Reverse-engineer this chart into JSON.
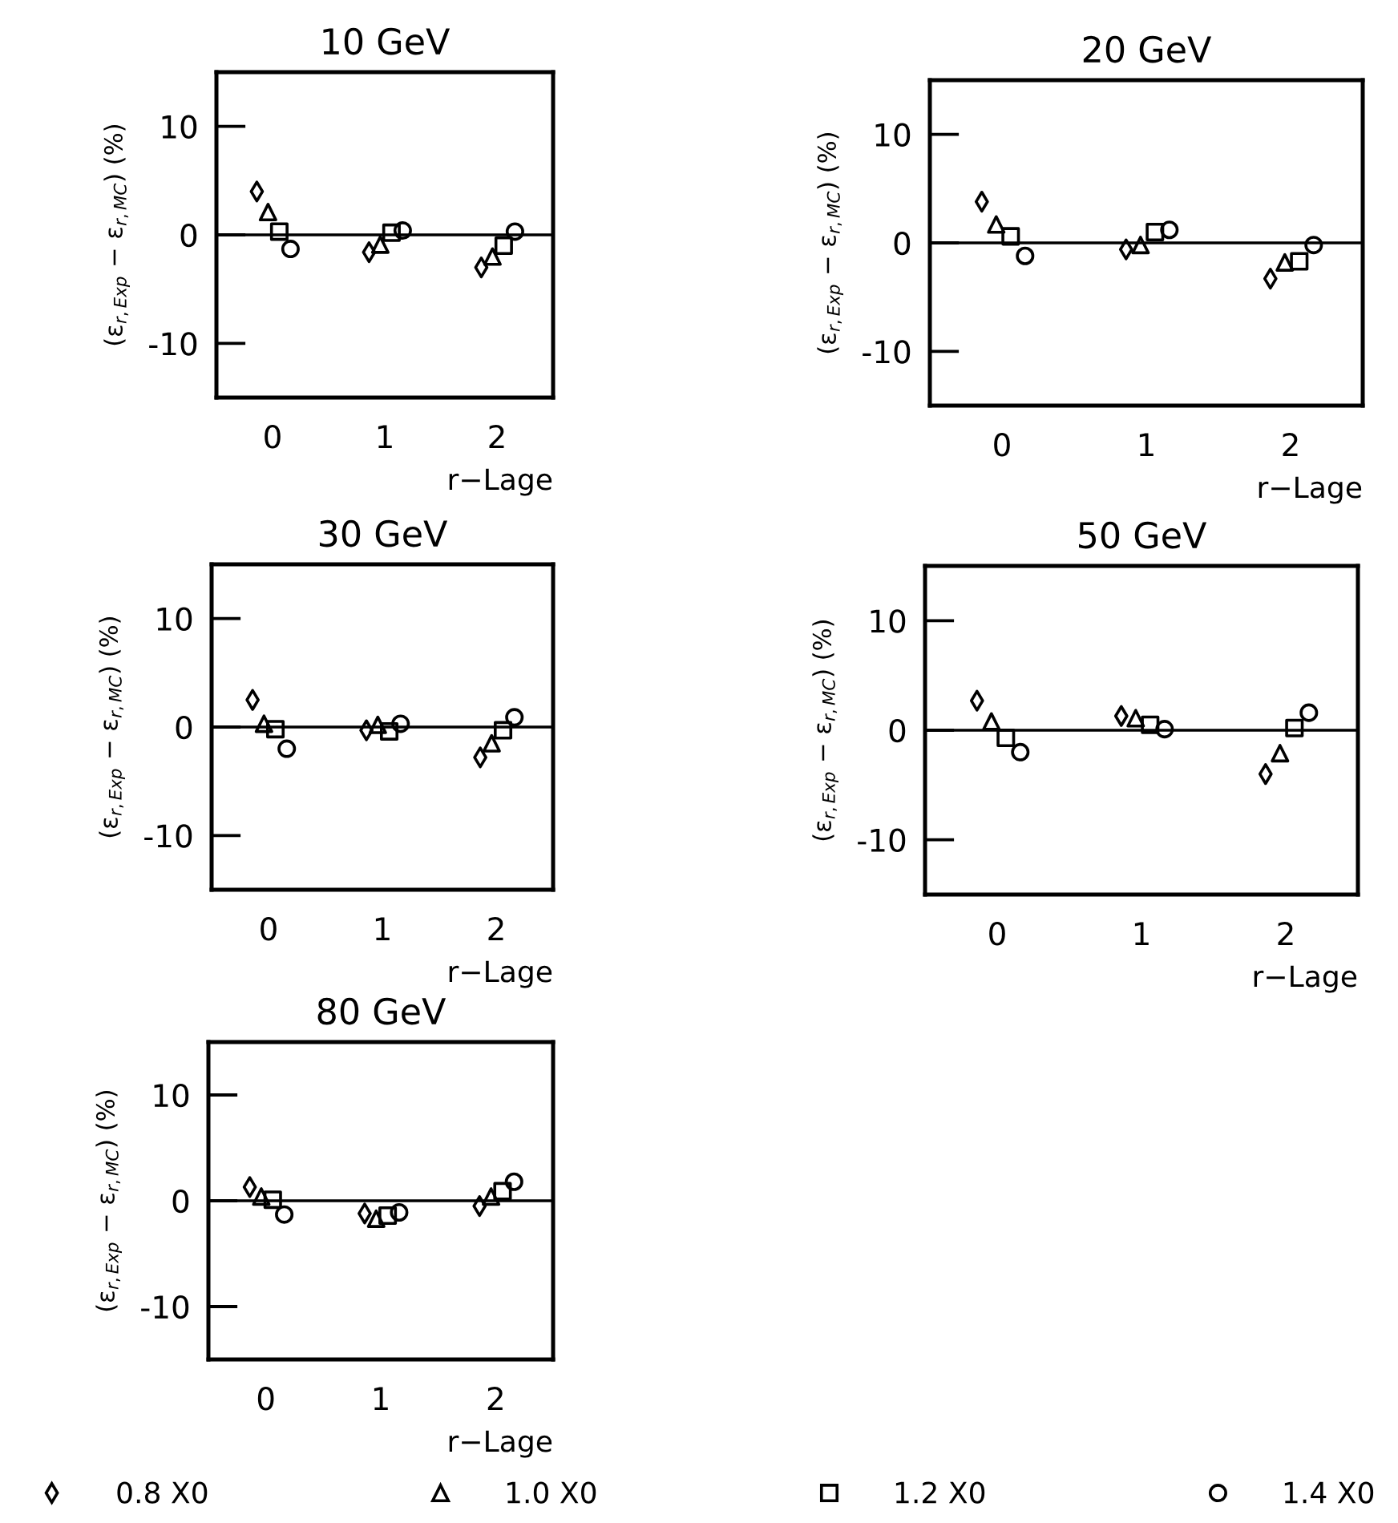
{
  "chart_data": [
    {
      "type": "scatter",
      "title": "10 GeV",
      "xlabel": "r−Lage",
      "ylabel": "(ε$_{r,Exp}$ − ε$_{r,MC}$) (%)",
      "xlim": [
        -0.5,
        2.5
      ],
      "ylim": [
        -15,
        15
      ],
      "xticks": [
        0,
        1,
        2
      ],
      "yticks": [
        -10,
        0,
        10
      ],
      "ref_lines": [
        {
          "axis": "y",
          "value": 0,
          "color": "#000000"
        }
      ],
      "legend": "bottom",
      "series": [
        {
          "name": "0.8 X0",
          "color": "#000000",
          "marker": "diamond",
          "x": [
            -0.14,
            0.86,
            1.86
          ],
          "values": [
            4.0,
            -1.6,
            -3.0
          ]
        },
        {
          "name": "1.0 X0",
          "color": "#000000",
          "marker": "triangle",
          "x": [
            -0.04,
            0.96,
            1.96
          ],
          "values": [
            2.1,
            -0.9,
            -2.0
          ]
        },
        {
          "name": "1.2 X0",
          "color": "#000000",
          "marker": "square",
          "x": [
            0.06,
            1.06,
            2.06
          ],
          "values": [
            0.3,
            0.2,
            -1.0
          ]
        },
        {
          "name": "1.4 X0",
          "color": "#000000",
          "marker": "circle",
          "x": [
            0.16,
            1.16,
            2.16
          ],
          "values": [
            -1.3,
            0.4,
            0.3
          ]
        }
      ]
    },
    {
      "type": "scatter",
      "title": "20 GeV",
      "xlabel": "r−Lage",
      "ylabel": "(ε$_{r,Exp}$ − ε$_{r,MC}$) (%)",
      "xlim": [
        -0.5,
        2.5
      ],
      "ylim": [
        -15,
        15
      ],
      "xticks": [
        0,
        1,
        2
      ],
      "yticks": [
        -10,
        0,
        10
      ],
      "ref_lines": [
        {
          "axis": "y",
          "value": 0,
          "color": "#000000"
        }
      ],
      "series": [
        {
          "color": "#000000",
          "marker": "diamond",
          "x": [
            -0.14,
            0.86,
            1.86
          ],
          "values": [
            3.8,
            -0.6,
            -3.3
          ]
        },
        {
          "color": "#000000",
          "marker": "triangle",
          "x": [
            -0.04,
            0.96,
            1.96
          ],
          "values": [
            1.7,
            -0.2,
            -1.8
          ]
        },
        {
          "color": "#000000",
          "marker": "square",
          "x": [
            0.06,
            1.06,
            2.06
          ],
          "values": [
            0.6,
            1.0,
            -1.7
          ]
        },
        {
          "color": "#000000",
          "marker": "circle",
          "x": [
            0.16,
            1.16,
            2.16
          ],
          "values": [
            -1.2,
            1.2,
            -0.2
          ]
        }
      ]
    },
    {
      "type": "scatter",
      "title": "30 GeV",
      "xlabel": "r−Lage",
      "ylabel": "(ε$_{r,Exp}$ − ε$_{r,MC}$) (%)",
      "xlim": [
        -0.5,
        2.5
      ],
      "ylim": [
        -15,
        15
      ],
      "xticks": [
        0,
        1,
        2
      ],
      "yticks": [
        -10,
        0,
        10
      ],
      "ref_lines": [
        {
          "axis": "y",
          "value": 0,
          "color": "#000000"
        }
      ],
      "series": [
        {
          "color": "#000000",
          "marker": "diamond",
          "x": [
            -0.14,
            0.86,
            1.86
          ],
          "values": [
            2.5,
            -0.3,
            -2.8
          ]
        },
        {
          "color": "#000000",
          "marker": "triangle",
          "x": [
            -0.04,
            0.96,
            1.96
          ],
          "values": [
            0.3,
            0.2,
            -1.5
          ]
        },
        {
          "color": "#000000",
          "marker": "square",
          "x": [
            0.06,
            1.06,
            2.06
          ],
          "values": [
            -0.2,
            -0.4,
            -0.3
          ]
        },
        {
          "color": "#000000",
          "marker": "circle",
          "x": [
            0.16,
            1.16,
            2.16
          ],
          "values": [
            -2.0,
            0.3,
            0.9
          ]
        }
      ]
    },
    {
      "type": "scatter",
      "title": "50 GeV",
      "xlabel": "r−Lage",
      "ylabel": "(ε$_{r,Exp}$ − ε$_{r,MC}$) (%)",
      "xlim": [
        -0.5,
        2.5
      ],
      "ylim": [
        -15,
        15
      ],
      "xticks": [
        0,
        1,
        2
      ],
      "yticks": [
        -10,
        0,
        10
      ],
      "ref_lines": [
        {
          "axis": "y",
          "value": 0,
          "color": "#000000"
        }
      ],
      "series": [
        {
          "color": "#000000",
          "marker": "diamond",
          "x": [
            -0.14,
            0.86,
            1.86
          ],
          "values": [
            2.7,
            1.3,
            -4.0
          ]
        },
        {
          "color": "#000000",
          "marker": "triangle",
          "x": [
            -0.04,
            0.96,
            1.96
          ],
          "values": [
            0.8,
            1.1,
            -2.1
          ]
        },
        {
          "color": "#000000",
          "marker": "square",
          "x": [
            0.06,
            1.06,
            2.06
          ],
          "values": [
            -0.7,
            0.5,
            0.2
          ]
        },
        {
          "color": "#000000",
          "marker": "circle",
          "x": [
            0.16,
            1.16,
            2.16
          ],
          "values": [
            -2.0,
            0.1,
            1.6
          ]
        }
      ]
    },
    {
      "type": "scatter",
      "title": "80 GeV",
      "xlabel": "r−Lage",
      "ylabel": "(ε$_{r,Exp}$ − ε$_{r,MC}$) (%)",
      "xlim": [
        -0.5,
        2.5
      ],
      "ylim": [
        -15,
        15
      ],
      "xticks": [
        0,
        1,
        2
      ],
      "yticks": [
        -10,
        0,
        10
      ],
      "ref_lines": [
        {
          "axis": "y",
          "value": 0,
          "color": "#000000"
        }
      ],
      "series": [
        {
          "color": "#000000",
          "marker": "diamond",
          "x": [
            -0.14,
            0.86,
            1.86
          ],
          "values": [
            1.3,
            -1.2,
            -0.5
          ]
        },
        {
          "color": "#000000",
          "marker": "triangle",
          "x": [
            -0.04,
            0.96,
            1.96
          ],
          "values": [
            0.4,
            -1.7,
            0.4
          ]
        },
        {
          "color": "#000000",
          "marker": "square",
          "x": [
            0.06,
            1.06,
            2.06
          ],
          "values": [
            0.1,
            -1.4,
            0.9
          ]
        },
        {
          "color": "#000000",
          "marker": "circle",
          "x": [
            0.16,
            1.16,
            2.16
          ],
          "values": [
            -1.3,
            -1.1,
            1.8
          ]
        }
      ]
    }
  ]
}
